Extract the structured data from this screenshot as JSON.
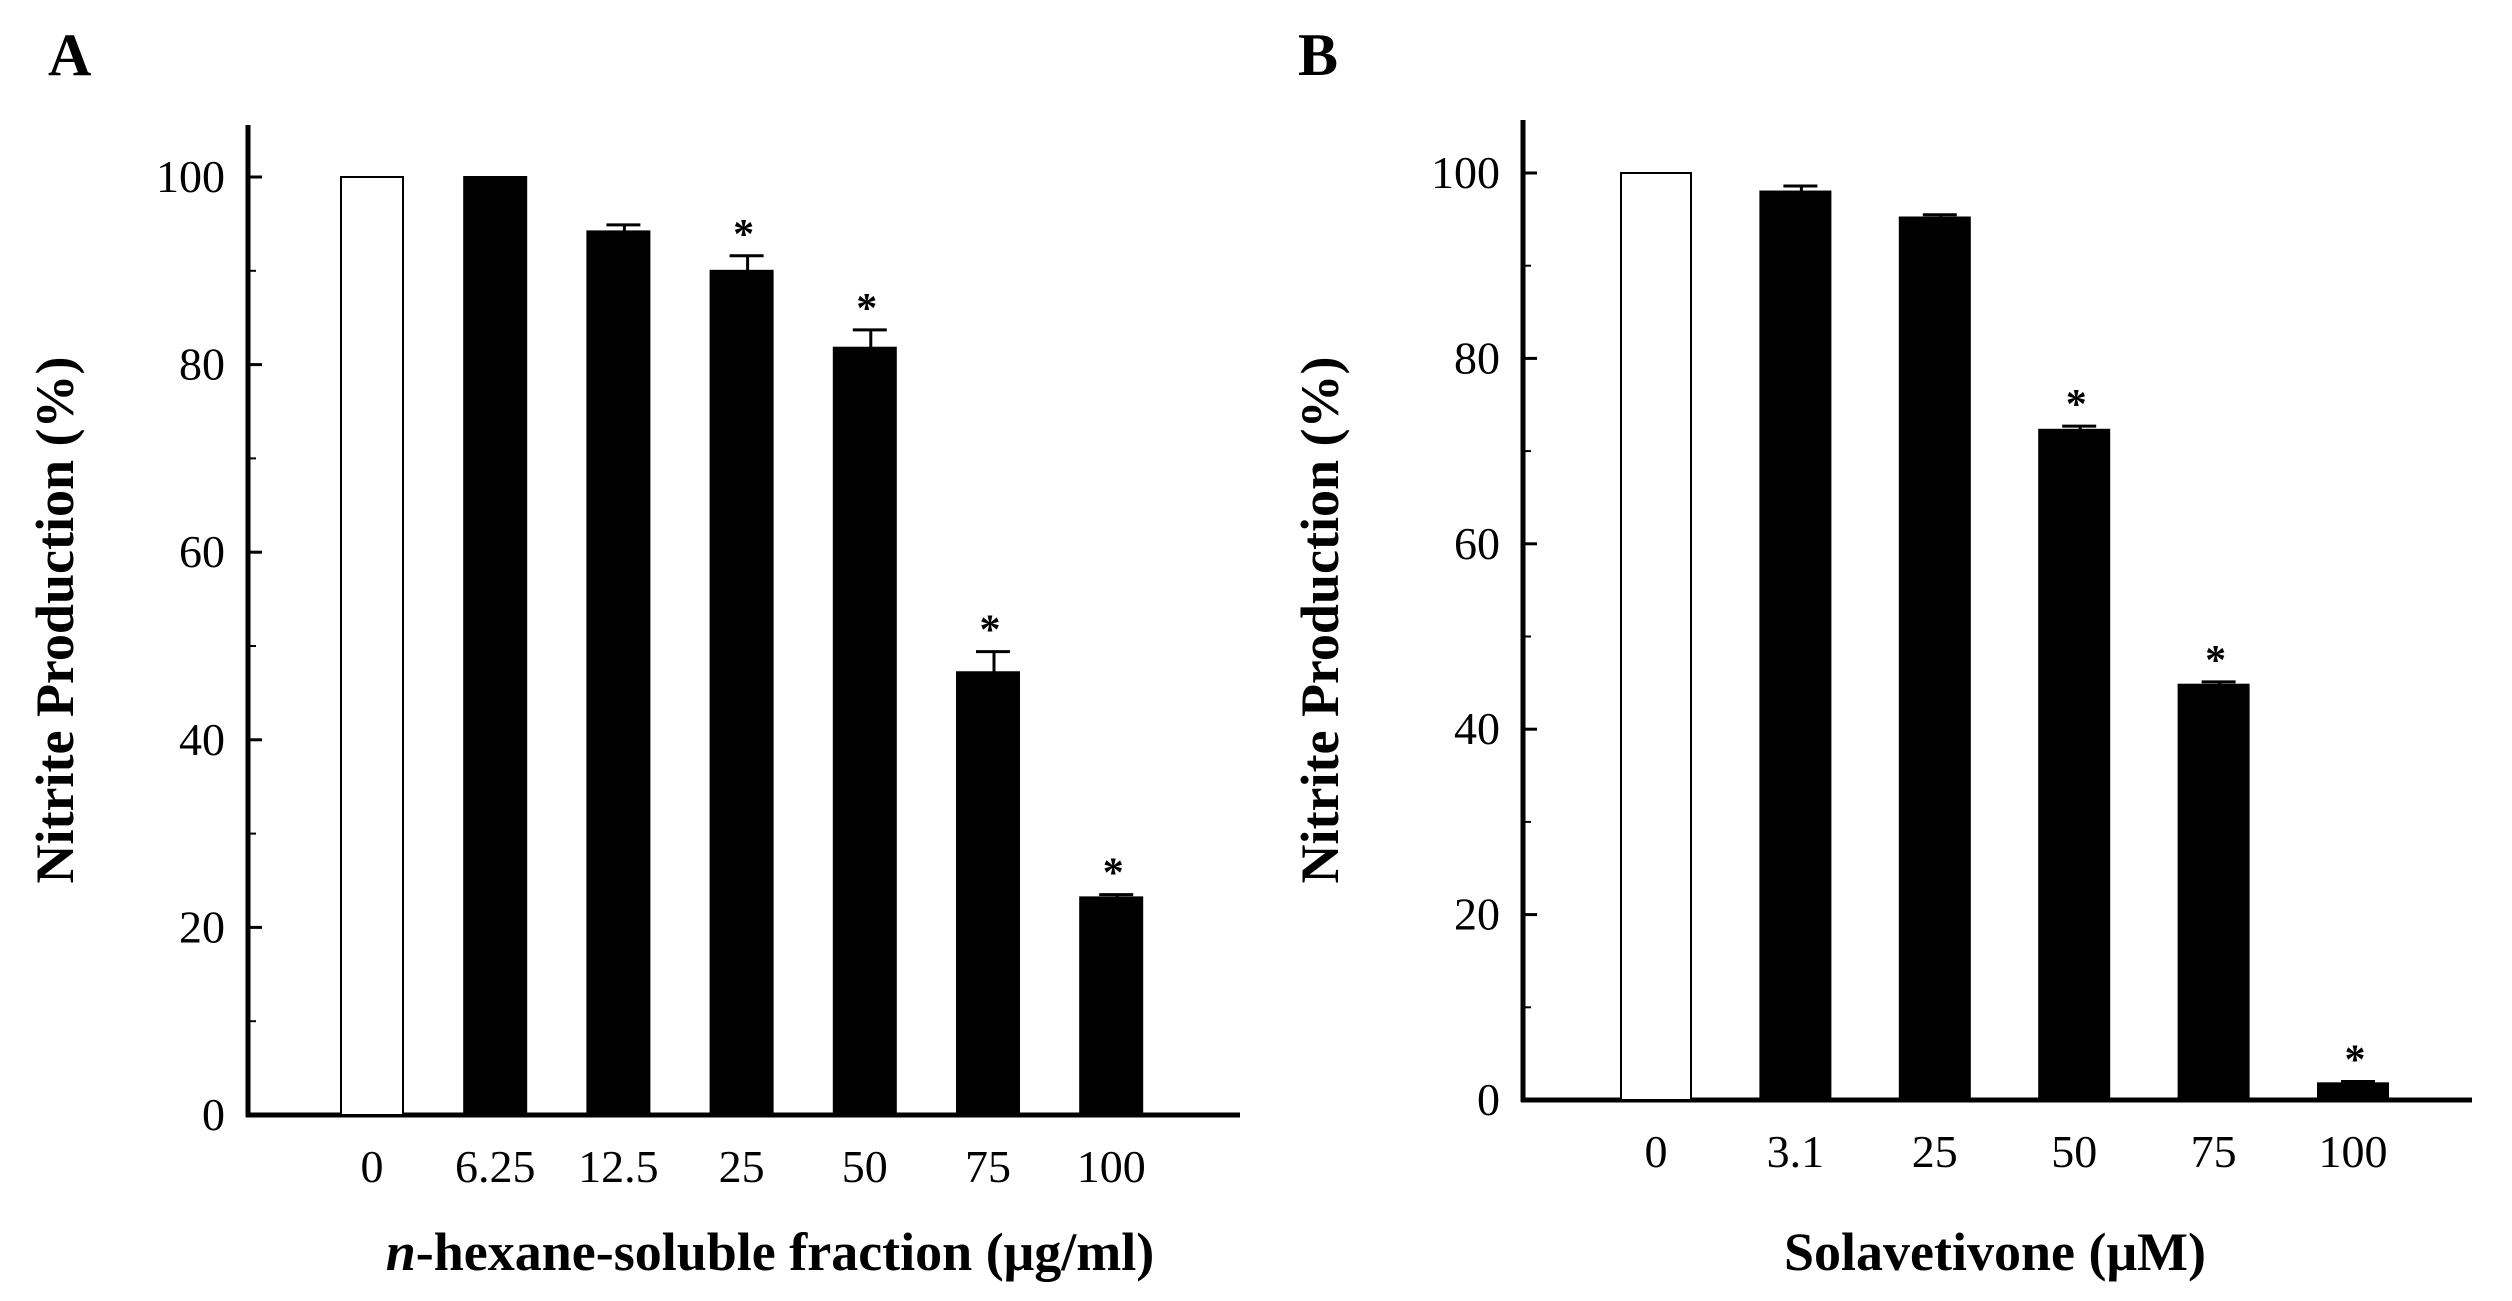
{
  "chart_data": [
    {
      "type": "bar",
      "panel": "A",
      "title": "",
      "xlabel_italic": "n",
      "xlabel_rest": "-hexane-soluble fraction (μg/ml)",
      "ylabel": "Nitrite  Production   (%)",
      "ylim": [
        0,
        100
      ],
      "yticks": [
        "0",
        "20",
        "40",
        "60",
        "80",
        "100"
      ],
      "categories": [
        "0",
        "6.25",
        "12.5",
        "25",
        "50",
        "75",
        "100"
      ],
      "values": [
        100,
        100,
        94.2,
        90,
        81.8,
        47.2,
        23.2
      ],
      "errors": [
        0,
        0,
        0.7,
        1.6,
        1.9,
        2.2,
        0.3
      ],
      "bar_colors": [
        "#ffffff",
        "#000000",
        "#000000",
        "#000000",
        "#000000",
        "#000000",
        "#000000"
      ],
      "significance": [
        "",
        "",
        "",
        "*",
        "*",
        "*",
        "*"
      ]
    },
    {
      "type": "bar",
      "panel": "B",
      "title": "",
      "xlabel": "Solavetivone (μM)",
      "ylabel": "Nitrite  Production   (%)",
      "ylim": [
        0,
        100
      ],
      "yticks": [
        "0",
        "20",
        "40",
        "60",
        "80",
        "100"
      ],
      "categories": [
        "0",
        "3.1",
        "25",
        "50",
        "75",
        "100"
      ],
      "values": [
        100,
        98,
        95.2,
        72.3,
        44.8,
        1.8
      ],
      "errors": [
        0,
        0.6,
        0.3,
        0.4,
        0.3,
        0.2
      ],
      "bar_colors": [
        "#ffffff",
        "#000000",
        "#000000",
        "#000000",
        "#000000",
        "#000000"
      ],
      "significance": [
        "",
        "",
        "",
        "*",
        "*",
        "*"
      ]
    }
  ]
}
